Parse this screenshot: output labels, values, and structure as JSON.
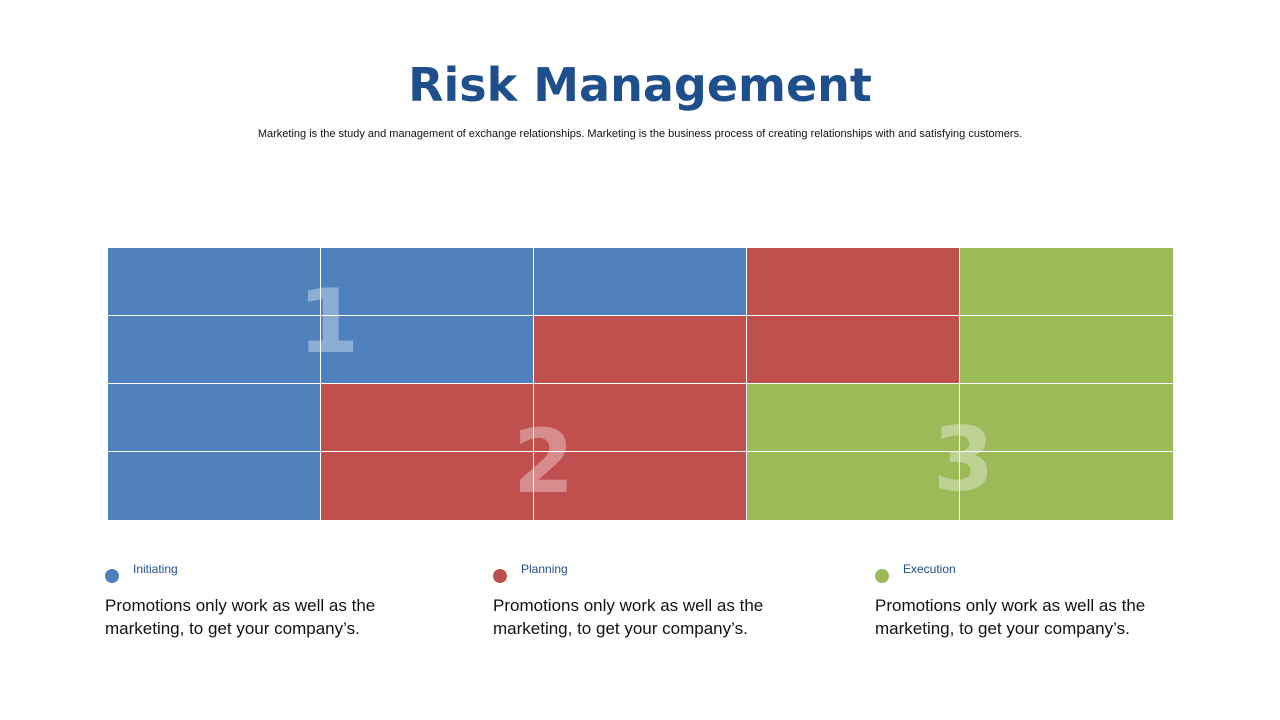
{
  "title": "Risk Management",
  "subtitle": "Marketing is the study and management of exchange relationships. Marketing is the  business process of creating relationships with and satisfying customers.",
  "colors": {
    "title": "#1f4e8c",
    "initiating": "#4f81bd",
    "planning": "#c0504d",
    "execution": "#9bbb59"
  },
  "grid": {
    "columns": 5,
    "rows": 4,
    "cells": [
      [
        "initiating",
        "initiating",
        "initiating",
        "planning",
        "execution"
      ],
      [
        "initiating",
        "initiating",
        "planning",
        "planning",
        "execution"
      ],
      [
        "initiating",
        "planning",
        "planning",
        "execution",
        "execution"
      ],
      [
        "initiating",
        "planning",
        "planning",
        "execution",
        "execution"
      ]
    ],
    "numbers": [
      "1",
      "2",
      "3"
    ]
  },
  "legend": [
    {
      "key": "initiating",
      "label": "Initiating",
      "description": "Promotions only work as well as the marketing, to get your company’s."
    },
    {
      "key": "planning",
      "label": "Planning",
      "description": "Promotions only work as well as the marketing, to get your company’s."
    },
    {
      "key": "execution",
      "label": "Execution",
      "description": "Promotions only work as well as the marketing, to get your company’s."
    }
  ]
}
